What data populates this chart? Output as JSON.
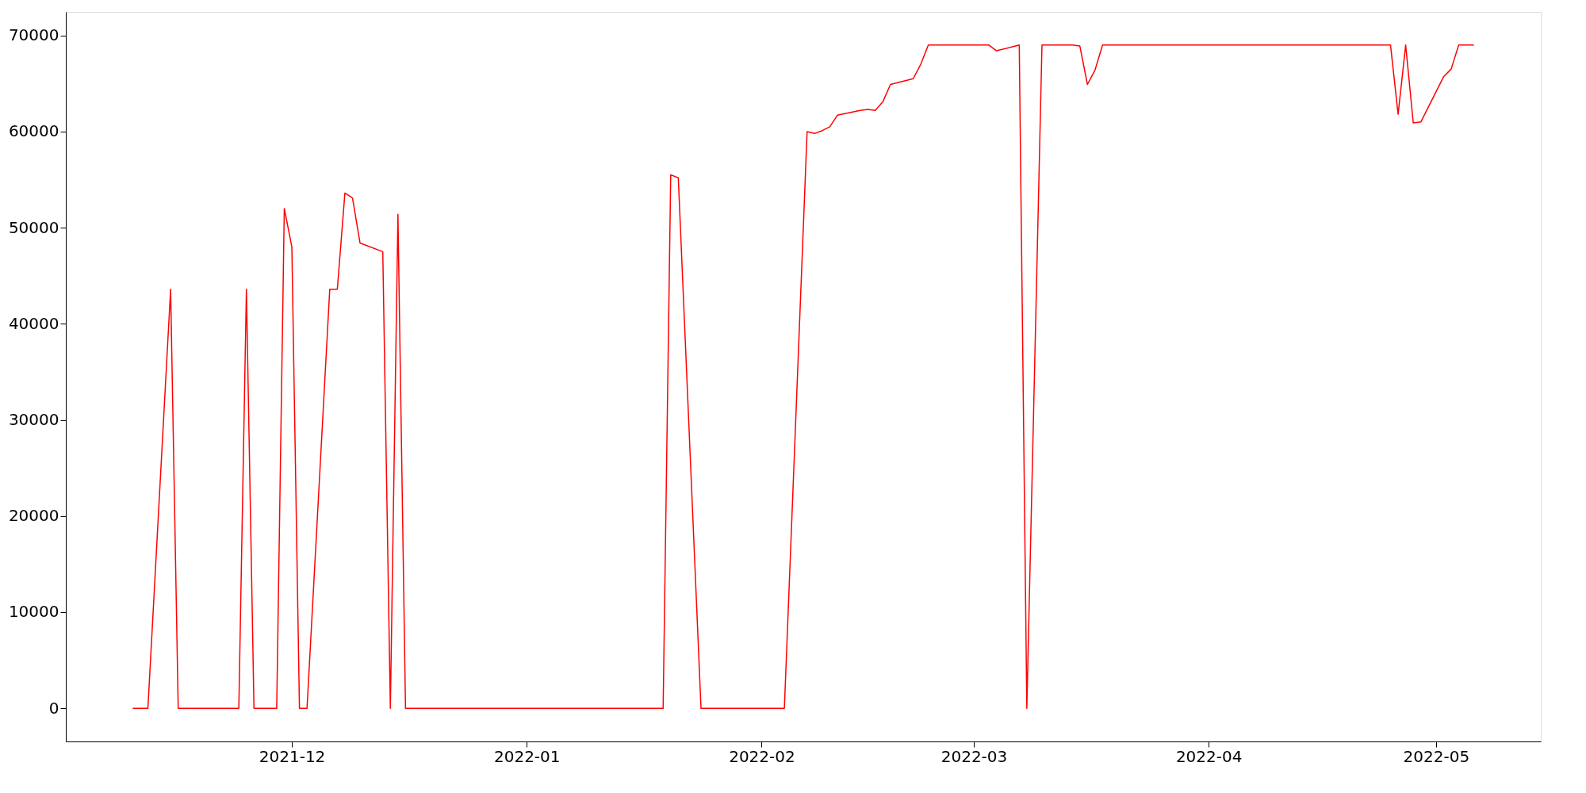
{
  "chart_data": {
    "type": "line",
    "x": [
      "2021-11-10",
      "2021-11-12",
      "2021-11-15",
      "2021-11-16",
      "2021-11-24",
      "2021-11-25",
      "2021-11-26",
      "2021-11-29",
      "2021-11-30",
      "2021-12-01",
      "2021-12-02",
      "2021-12-03",
      "2021-12-06",
      "2021-12-07",
      "2021-12-08",
      "2021-12-09",
      "2021-12-10",
      "2021-12-13",
      "2021-12-14",
      "2021-12-15",
      "2021-12-16",
      "2022-01-19",
      "2022-01-20",
      "2022-01-21",
      "2022-01-24",
      "2022-02-04",
      "2022-02-07",
      "2022-02-08",
      "2022-02-09",
      "2022-02-10",
      "2022-02-11",
      "2022-02-14",
      "2022-02-15",
      "2022-02-16",
      "2022-02-17",
      "2022-02-18",
      "2022-02-21",
      "2022-02-22",
      "2022-02-23",
      "2022-03-03",
      "2022-03-04",
      "2022-03-07",
      "2022-03-08",
      "2022-03-10",
      "2022-03-14",
      "2022-03-15",
      "2022-03-16",
      "2022-03-17",
      "2022-03-18",
      "2022-04-25",
      "2022-04-26",
      "2022-04-27",
      "2022-04-28",
      "2022-04-29",
      "2022-05-02",
      "2022-05-03",
      "2022-05-04",
      "2022-05-06"
    ],
    "series": [
      {
        "color": "#ff0000",
        "values": [
          0,
          0,
          43600,
          0,
          0,
          43600,
          0,
          0,
          52000,
          48000,
          0,
          0,
          43600,
          43600,
          53600,
          53100,
          48400,
          47500,
          0,
          51400,
          0,
          0,
          55500,
          55200,
          0,
          0,
          60000,
          59800,
          60100,
          60500,
          61700,
          62200,
          62300,
          62200,
          63100,
          64900,
          65500,
          67000,
          69000,
          69000,
          68400,
          69000,
          0,
          69000,
          69000,
          68900,
          64900,
          66400,
          69000,
          69000,
          61800,
          69000,
          60900,
          61000,
          65700,
          66500,
          69000,
          69000
        ]
      }
    ],
    "xlim": [
      "2021-11-01T04:00",
      "2022-05-14T20:00"
    ],
    "xticks": [
      {
        "value": "2021-12",
        "label": "2021-12"
      },
      {
        "value": "2022-01",
        "label": "2022-01"
      },
      {
        "value": "2022-02",
        "label": "2022-02"
      },
      {
        "value": "2022-03",
        "label": "2022-03"
      },
      {
        "value": "2022-04",
        "label": "2022-04"
      },
      {
        "value": "2022-05",
        "label": "2022-05"
      }
    ],
    "ylim": [
      -3450,
      72450
    ],
    "yticks": [
      0,
      10000,
      20000,
      30000,
      40000,
      50000,
      60000,
      70000
    ],
    "grid": false,
    "marker": "none",
    "line_style": "solid"
  }
}
